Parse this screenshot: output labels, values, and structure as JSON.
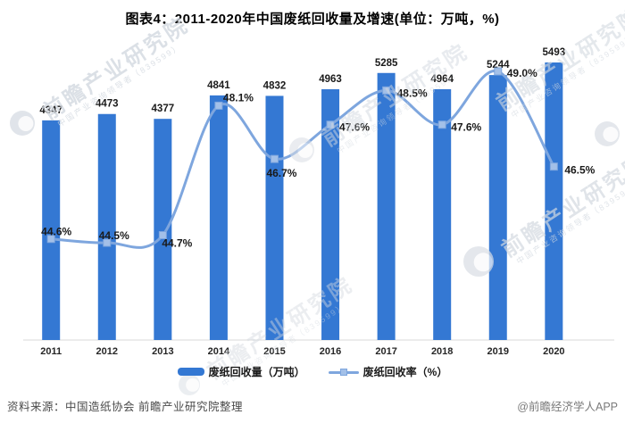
{
  "page_title": "图表4：2011-2020年中国废纸回收量及增速(单位：万吨，%)",
  "chart_data": {
    "type": "bar-line-combo",
    "title": "图表4：2011-2020年中国废纸回收量及增速(单位：万吨，%)",
    "categories": [
      "2011",
      "2012",
      "2013",
      "2014",
      "2015",
      "2016",
      "2017",
      "2018",
      "2019",
      "2020"
    ],
    "series": [
      {
        "name": "废纸回收量（万吨）",
        "type": "bar",
        "color": "#3478d3",
        "values": [
          4347,
          4473,
          4377,
          4841,
          4832,
          4963,
          5285,
          4964,
          5244,
          5493
        ]
      },
      {
        "name": "废纸回收率（%）",
        "type": "line",
        "color": "#7ea6de",
        "marker_fill": "#a3c0e8",
        "values": [
          44.6,
          44.5,
          44.7,
          48.1,
          46.7,
          47.6,
          48.5,
          47.6,
          49.0,
          46.5
        ],
        "labels": [
          "44.6%",
          "44.5%",
          "44.7%",
          "48.1%",
          "46.7%",
          "47.6%",
          "48.5%",
          "47.6%",
          "49.0%",
          "46.5%"
        ],
        "label_offsets": [
          [
            6,
            -4,
            "middle"
          ],
          [
            8,
            -4,
            "middle"
          ],
          [
            16,
            13,
            "middle"
          ],
          [
            5,
            -5,
            "start"
          ],
          [
            8,
            20,
            "middle"
          ],
          [
            10,
            7,
            "start"
          ],
          [
            12,
            7,
            "start"
          ],
          [
            10,
            7,
            "start"
          ],
          [
            10,
            6,
            "start"
          ],
          [
            12,
            8,
            "start"
          ]
        ]
      }
    ],
    "xlabel": "",
    "ylabel": "",
    "axes_hidden": true,
    "grid": false,
    "legend_position": "bottom",
    "bar_ylim_estimate": [
      0,
      5850
    ],
    "line_ylim_estimate": [
      40,
      50
    ],
    "label_color": "#1a1a1a",
    "axis_line_color": "#d9d9d9",
    "tick_label_color": "#262626"
  },
  "legend": {
    "items": [
      {
        "label": "废纸回收量（万吨）",
        "type": "bar"
      },
      {
        "label": "废纸回收率（%）",
        "type": "line"
      }
    ]
  },
  "footer": {
    "source": "资料来源：中国造纸协会 前瞻产业研究院整理",
    "brand": "@前瞻经济学人APP"
  },
  "watermark": {
    "text": "前瞻产业研究院",
    "subtext": "中国产业咨询领导者（839599）"
  }
}
